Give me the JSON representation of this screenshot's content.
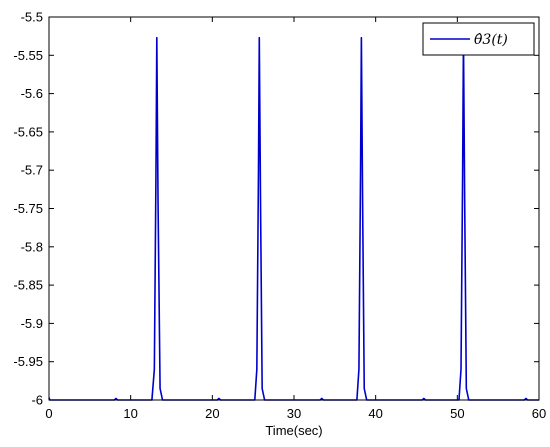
{
  "chart_data": {
    "type": "line",
    "title": "",
    "xlabel": "Time(sec)",
    "ylabel": "",
    "xlim": [
      0,
      60
    ],
    "ylim": [
      -6,
      -5.5
    ],
    "x_ticks": [
      0,
      10,
      20,
      30,
      40,
      50,
      60
    ],
    "y_ticks": [
      -6,
      -5.95,
      -5.9,
      -5.85,
      -5.8,
      -5.75,
      -5.7,
      -5.65,
      -5.6,
      -5.55,
      -5.5
    ],
    "x_tick_labels": [
      "0",
      "10",
      "20",
      "30",
      "40",
      "50",
      "60"
    ],
    "y_tick_labels": [
      "-6",
      "-5.95",
      "-5.9",
      "-5.85",
      "-5.8",
      "-5.75",
      "-5.7",
      "-5.65",
      "-5.6",
      "-5.55",
      "-5.5"
    ],
    "grid": false,
    "legend": {
      "position": "top-right",
      "entries": [
        "θ̂3(t)"
      ]
    },
    "series": [
      {
        "name": "θ̂3(t)",
        "color": "#0000cc",
        "baseline": -6,
        "x": [
          0,
          0.1,
          0.3,
          8.0,
          8.2,
          8.4,
          12.6,
          12.9,
          13.1,
          13.2,
          13.35,
          13.6,
          13.9,
          20.6,
          20.8,
          21.0,
          25.2,
          25.45,
          25.65,
          25.75,
          25.9,
          26.1,
          26.4,
          33.2,
          33.4,
          33.6,
          37.7,
          37.95,
          38.15,
          38.25,
          38.4,
          38.6,
          38.9,
          45.7,
          45.9,
          46.1,
          50.2,
          50.45,
          50.65,
          50.75,
          50.9,
          51.1,
          51.4,
          58.2,
          58.4,
          58.6,
          60
        ],
        "y": [
          -5.997,
          -6,
          -6,
          -6,
          -5.998,
          -6,
          -6,
          -5.96,
          -5.7,
          -5.527,
          -5.74,
          -5.985,
          -6,
          -6,
          -5.998,
          -6,
          -6,
          -5.96,
          -5.7,
          -5.527,
          -5.74,
          -5.985,
          -6,
          -6,
          -5.998,
          -6,
          -6,
          -5.96,
          -5.7,
          -5.527,
          -5.74,
          -5.985,
          -6,
          -6,
          -5.998,
          -6,
          -6,
          -5.96,
          -5.7,
          -5.527,
          -5.74,
          -5.985,
          -6,
          -6,
          -5.998,
          -6,
          -6
        ]
      }
    ]
  }
}
